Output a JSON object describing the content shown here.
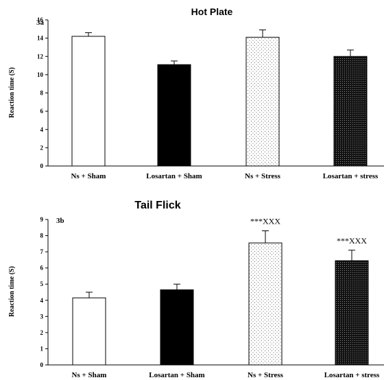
{
  "chart_data": [
    {
      "type": "bar",
      "panel": "3a",
      "title": "Hot Plate",
      "ylabel": "Reaction time (S)",
      "ylim": [
        0,
        16
      ],
      "yticks": [
        0,
        2,
        4,
        6,
        8,
        10,
        12,
        14,
        16
      ],
      "categories": [
        "Ns + Sham",
        "Losartan + Sham",
        "Ns + Stress",
        "Losartan + stress"
      ],
      "values": [
        14.2,
        11.1,
        14.1,
        12.0
      ],
      "errors": [
        0.4,
        0.4,
        0.8,
        0.7
      ],
      "fills": [
        "white",
        "black",
        "light-dots",
        "dense-dots"
      ],
      "annotations": [
        "",
        "",
        "",
        ""
      ],
      "grid": false
    },
    {
      "type": "bar",
      "panel": "3b",
      "title": "Tail Flick",
      "ylabel": "Reaction time (S)",
      "ylim": [
        0,
        9
      ],
      "yticks": [
        0,
        1,
        2,
        3,
        4,
        5,
        6,
        7,
        8,
        9
      ],
      "categories": [
        "Ns + Sham",
        "Losartan + Sham",
        "Ns + Stress",
        "Losartan + stress"
      ],
      "values": [
        4.15,
        4.65,
        7.55,
        6.45
      ],
      "errors": [
        0.35,
        0.35,
        0.75,
        0.65
      ],
      "fills": [
        "white",
        "black",
        "light-dots",
        "dense-dots"
      ],
      "annotations": [
        "",
        "",
        "***XXX",
        "***XXX"
      ],
      "grid": false
    }
  ]
}
